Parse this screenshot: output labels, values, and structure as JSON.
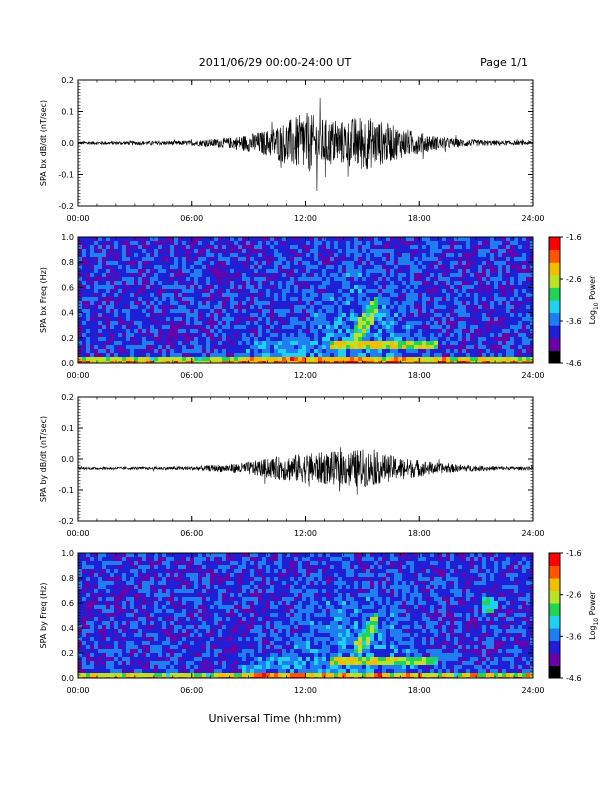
{
  "header": {
    "title": "2011/06/29  00:00-24:00 UT",
    "page": "Page 1/1"
  },
  "footer": {
    "xlabel": "Universal Time (hh:mm)"
  },
  "colormap": [
    "#000000",
    "#6a00a8",
    "#1f1fd6",
    "#1f7ff0",
    "#20d0f0",
    "#22d455",
    "#b8e32a",
    "#f0c000",
    "#ff5500",
    "#ff0000"
  ],
  "chart_data": [
    {
      "type": "line",
      "ylabel": "SPA bx dB/dt (nT/sec)",
      "x_ticks": [
        "00:00",
        "06:00",
        "12:00",
        "18:00",
        "24:00"
      ],
      "xlim": [
        0,
        24
      ],
      "ylim": [
        -0.2,
        0.2
      ],
      "y_ticks": [
        "-0.2",
        "-0.1",
        "0.0",
        "0.1",
        "0.2"
      ],
      "baseline": 0.0,
      "x": [
        0,
        1,
        2,
        3,
        4,
        5,
        6,
        7,
        8,
        9,
        10,
        11,
        12,
        13,
        14,
        15,
        16,
        17,
        18,
        19,
        20,
        21,
        22,
        23,
        24
      ],
      "envelope": [
        0.008,
        0.008,
        0.008,
        0.009,
        0.009,
        0.01,
        0.012,
        0.018,
        0.025,
        0.04,
        0.06,
        0.1,
        0.14,
        0.11,
        0.1,
        0.13,
        0.1,
        0.07,
        0.05,
        0.03,
        0.02,
        0.015,
        0.012,
        0.01,
        0.01
      ]
    },
    {
      "type": "heatmap",
      "ylabel": "SPA bx Freq (Hz)",
      "x_ticks": [
        "00:00",
        "06:00",
        "12:00",
        "18:00",
        "24:00"
      ],
      "xlim": [
        0,
        24
      ],
      "ylim": [
        0,
        1
      ],
      "y_ticks": [
        "0.0",
        "0.2",
        "0.4",
        "0.6",
        "0.8",
        "1.0"
      ],
      "colorbar": {
        "label": "Log10 Power",
        "label_base": "Log",
        "label_sub": "10",
        "label_rest": " Power",
        "min": -4.6,
        "max": -1.6,
        "ticks": [
          "-1.6",
          "-2.6",
          "-3.6",
          "-4.6"
        ]
      }
    },
    {
      "type": "line",
      "ylabel": "SPA by dB/dt (nT/sec)",
      "x_ticks": [
        "00:00",
        "06:00",
        "12:00",
        "18:00",
        "24:00"
      ],
      "xlim": [
        0,
        24
      ],
      "ylim": [
        -0.2,
        0.2
      ],
      "y_ticks": [
        "-0.2",
        "-0.1",
        "0.0",
        "0.1",
        "0.2"
      ],
      "baseline": -0.03,
      "x": [
        0,
        1,
        2,
        3,
        4,
        5,
        6,
        7,
        8,
        9,
        10,
        11,
        12,
        13,
        14,
        15,
        16,
        17,
        18,
        19,
        20,
        21,
        22,
        23,
        24
      ],
      "envelope": [
        0.006,
        0.006,
        0.006,
        0.006,
        0.007,
        0.008,
        0.01,
        0.014,
        0.02,
        0.03,
        0.045,
        0.06,
        0.07,
        0.075,
        0.08,
        0.09,
        0.07,
        0.05,
        0.04,
        0.025,
        0.018,
        0.013,
        0.01,
        0.008,
        0.008
      ]
    },
    {
      "type": "heatmap",
      "ylabel": "SPA by Freq (Hz)",
      "x_ticks": [
        "00:00",
        "06:00",
        "12:00",
        "18:00",
        "24:00"
      ],
      "xlim": [
        0,
        24
      ],
      "ylim": [
        0,
        1
      ],
      "y_ticks": [
        "0.0",
        "0.2",
        "0.4",
        "0.6",
        "0.8",
        "1.0"
      ],
      "colorbar": {
        "label": "Log10 Power",
        "label_base": "Log",
        "label_sub": "10",
        "label_rest": " Power",
        "min": -4.6,
        "max": -1.6,
        "ticks": [
          "-1.6",
          "-2.6",
          "-3.6",
          "-4.6"
        ]
      }
    }
  ]
}
